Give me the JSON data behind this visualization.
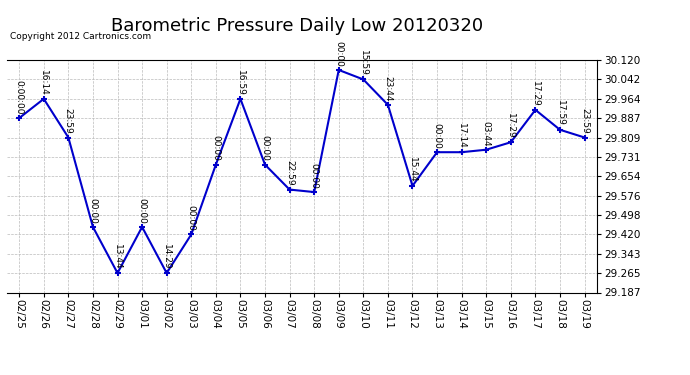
{
  "title": "Barometric Pressure Daily Low 20120320",
  "copyright": "Copyright 2012 Cartronics.com",
  "x_labels": [
    "02/25",
    "02/26",
    "02/27",
    "02/28",
    "02/29",
    "03/01",
    "03/02",
    "03/03",
    "03/04",
    "03/05",
    "03/06",
    "03/07",
    "03/08",
    "03/09",
    "03/10",
    "03/11",
    "03/12",
    "03/13",
    "03/14",
    "03/15",
    "03/16",
    "03/17",
    "03/18",
    "03/19"
  ],
  "y_values": [
    29.887,
    29.964,
    29.809,
    29.45,
    29.265,
    29.45,
    29.265,
    29.42,
    29.7,
    29.964,
    29.7,
    29.6,
    29.59,
    30.08,
    30.042,
    29.94,
    29.615,
    29.75,
    29.75,
    29.76,
    29.79,
    29.92,
    29.84,
    29.809
  ],
  "point_labels": [
    "0:00:00",
    "16:14",
    "23:59",
    "00:00",
    "13:44",
    "00:00",
    "14:29",
    "00:00",
    "00:00",
    "16:59",
    "00:00",
    "22:59",
    "00:00",
    "00:00",
    "15:59",
    "23:44",
    "15:44",
    "00:00",
    "17:14",
    "03:44",
    "17:29",
    "17:29",
    "17:59",
    "23:59"
  ],
  "y_min": 29.187,
  "y_max": 30.12,
  "y_ticks": [
    29.187,
    29.265,
    29.343,
    29.42,
    29.498,
    29.576,
    29.654,
    29.731,
    29.809,
    29.887,
    29.964,
    30.042,
    30.12
  ],
  "line_color": "#0000cc",
  "marker_color": "#0000cc",
  "bg_color": "#ffffff",
  "grid_color": "#bbbbbb",
  "title_fontsize": 13,
  "tick_fontsize": 7.5,
  "annot_fontsize": 6.5
}
